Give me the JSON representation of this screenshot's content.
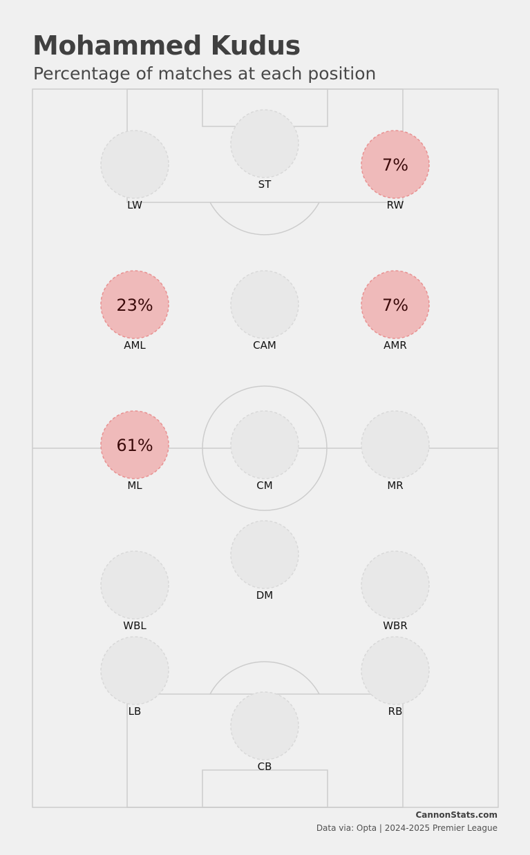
{
  "title": "Mohammed Kudus",
  "subtitle": "Percentage of matches at each position",
  "footer": {
    "site": "CannonStats.com",
    "source": "Data via: Opta | 2024-2025 Premier League"
  },
  "colors": {
    "background": "#f0f0f0",
    "pitch_lines": "#cccccc",
    "empty_fill": "#e8e8e8",
    "empty_stroke": "#d8d8d8",
    "played_fill": "#efbaba",
    "played_stroke": "#e89090",
    "value_text": "#3a0a0a",
    "label_text": "#111111"
  },
  "chart_data": {
    "type": "pitch_position_map",
    "unit": "%",
    "positions": [
      {
        "label": "ST",
        "value": null
      },
      {
        "label": "LW",
        "value": null
      },
      {
        "label": "RW",
        "value": 7
      },
      {
        "label": "AML",
        "value": 23
      },
      {
        "label": "CAM",
        "value": null
      },
      {
        "label": "AMR",
        "value": 7
      },
      {
        "label": "ML",
        "value": 61
      },
      {
        "label": "CM",
        "value": null
      },
      {
        "label": "MR",
        "value": null
      },
      {
        "label": "DM",
        "value": null
      },
      {
        "label": "WBL",
        "value": null
      },
      {
        "label": "WBR",
        "value": null
      },
      {
        "label": "LB",
        "value": null
      },
      {
        "label": "RB",
        "value": null
      },
      {
        "label": "CB",
        "value": null
      }
    ]
  }
}
